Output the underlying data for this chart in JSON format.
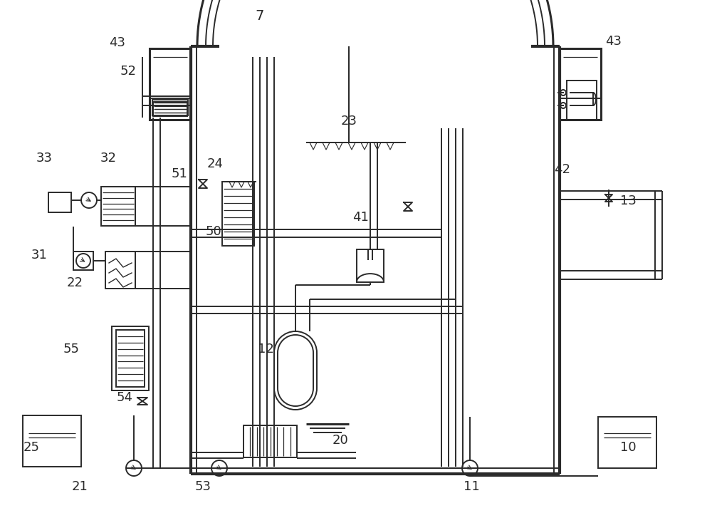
{
  "bg_color": "#ffffff",
  "lc": "#2a2a2a",
  "lw": 1.4,
  "lw2": 2.2,
  "lw3": 3.0
}
